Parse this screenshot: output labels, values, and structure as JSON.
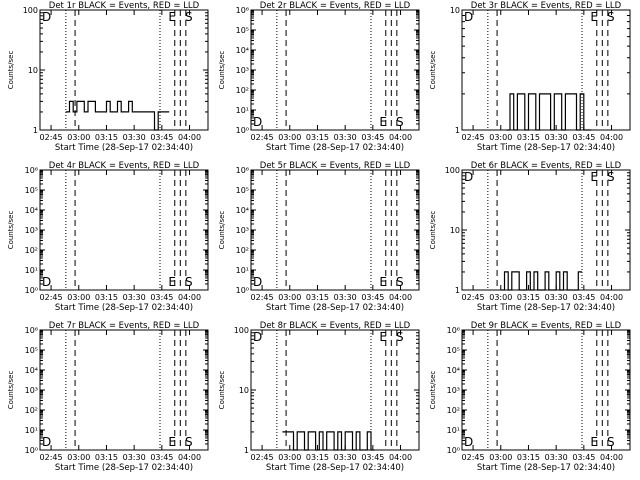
{
  "x_axis_label": "Start Time (28-Sep-17 02:34:40)",
  "y_axis_label": "Counts/sec",
  "colors": {
    "events": "#000000",
    "lld": "#ff0000",
    "background": "#ffffff"
  },
  "chart_data": [
    {
      "type": "line",
      "title": "Det 1r BLACK = Events, RED = LLD",
      "xlabel": "Start Time (28-Sep-17 02:34:40)",
      "ylabel": "Counts/sec",
      "x_ticks": [
        "02:45",
        "03:00",
        "03:15",
        "03:30",
        "03:45",
        "04:00"
      ],
      "y_scale": "log",
      "ylim": [
        1,
        100
      ],
      "y_ticks": [
        "1",
        "10",
        "100"
      ],
      "markers": [
        "D",
        "E",
        "S"
      ],
      "series": [
        {
          "x": [
            "02:53",
            "02:55",
            "02:57",
            "02:59",
            "03:01",
            "03:03",
            "03:05",
            "03:07",
            "03:09",
            "03:11",
            "03:13",
            "03:15",
            "03:17",
            "03:19",
            "03:21",
            "03:23",
            "03:25",
            "03:27",
            "03:29",
            "03:31",
            "03:33",
            "03:35",
            "03:37",
            "03:39",
            "03:41",
            "03:43",
            "03:45",
            "03:47"
          ],
          "values": [
            2,
            3,
            2,
            3,
            3,
            2,
            3,
            3,
            2,
            2,
            2,
            3,
            2,
            2,
            3,
            2,
            2,
            3,
            2,
            2,
            2,
            2,
            2,
            2,
            1,
            2,
            2,
            2
          ]
        }
      ]
    },
    {
      "type": "line",
      "title": "Det 2r BLACK = Events, RED = LLD",
      "xlabel": "Start Time (28-Sep-17 02:34:40)",
      "ylabel": "Counts/sec",
      "x_ticks": [
        "02:45",
        "03:00",
        "03:15",
        "03:30",
        "03:45",
        "04:00"
      ],
      "y_scale": "log",
      "ylim": [
        1,
        1000000
      ],
      "y_ticks": [
        "10⁰",
        "10¹",
        "10²",
        "10³",
        "10⁴",
        "10⁵",
        "10⁶"
      ],
      "markers": [
        "D",
        "E",
        "S"
      ],
      "series": []
    },
    {
      "type": "line",
      "title": "Det 3r BLACK = Events, RED = LLD",
      "xlabel": "Start Time (28-Sep-17 02:34:40)",
      "ylabel": "Counts/sec",
      "x_ticks": [
        "02:45",
        "03:00",
        "03:15",
        "03:30",
        "03:45",
        "04:00"
      ],
      "y_scale": "log",
      "ylim": [
        1,
        10
      ],
      "y_ticks": [
        "1",
        "10"
      ],
      "markers": [
        "D",
        "E",
        "S"
      ],
      "series": [
        {
          "x": [
            "03:03",
            "03:05",
            "03:07",
            "03:09",
            "03:11",
            "03:13",
            "03:15",
            "03:17",
            "03:19",
            "03:21",
            "03:23",
            "03:25",
            "03:27",
            "03:29",
            "03:31",
            "03:33",
            "03:35",
            "03:37",
            "03:39",
            "03:41",
            "03:43",
            "03:45",
            "03:47"
          ],
          "values": [
            1,
            2,
            1,
            2,
            2,
            1,
            2,
            2,
            1,
            2,
            2,
            2,
            1,
            2,
            2,
            1,
            2,
            2,
            2,
            1,
            2,
            1,
            1
          ]
        }
      ]
    },
    {
      "type": "line",
      "title": "Det 4r BLACK = Events, RED = LLD",
      "xlabel": "Start Time (28-Sep-17 02:34:40)",
      "ylabel": "Counts/sec",
      "x_ticks": [
        "02:45",
        "03:00",
        "03:15",
        "03:30",
        "03:45",
        "04:00"
      ],
      "y_scale": "log",
      "ylim": [
        1,
        1000000
      ],
      "y_ticks": [
        "10⁰",
        "10¹",
        "10²",
        "10³",
        "10⁴",
        "10⁵",
        "10⁶"
      ],
      "markers": [
        "D",
        "E",
        "S"
      ],
      "series": []
    },
    {
      "type": "line",
      "title": "Det 5r BLACK = Events, RED = LLD",
      "xlabel": "Start Time (28-Sep-17 02:34:40)",
      "ylabel": "Counts/sec",
      "x_ticks": [
        "02:45",
        "03:00",
        "03:15",
        "03:30",
        "03:45",
        "04:00"
      ],
      "y_scale": "log",
      "ylim": [
        1,
        1000000
      ],
      "y_ticks": [
        "10⁰",
        "10¹",
        "10²",
        "10³",
        "10⁴",
        "10⁵",
        "10⁶"
      ],
      "markers": [
        "D",
        "E",
        "S"
      ],
      "series": []
    },
    {
      "type": "line",
      "title": "Det 6r BLACK = Events, RED = LLD",
      "xlabel": "Start Time (28-Sep-17 02:34:40)",
      "ylabel": "Counts/sec",
      "x_ticks": [
        "02:45",
        "03:00",
        "03:15",
        "03:30",
        "03:45",
        "04:00"
      ],
      "y_scale": "log",
      "ylim": [
        1,
        100
      ],
      "y_ticks": [
        "1",
        "10",
        "100"
      ],
      "markers": [
        "D",
        "E",
        "S"
      ],
      "series": [
        {
          "x": [
            "03:00",
            "03:02",
            "03:04",
            "03:06",
            "03:08",
            "03:10",
            "03:12",
            "03:14",
            "03:16",
            "03:18",
            "03:20",
            "03:22",
            "03:24",
            "03:26",
            "03:28",
            "03:30",
            "03:32",
            "03:34",
            "03:36",
            "03:38",
            "03:40",
            "03:42"
          ],
          "values": [
            1,
            2,
            1,
            2,
            2,
            1,
            1,
            2,
            1,
            2,
            1,
            1,
            2,
            1,
            1,
            2,
            1,
            2,
            1,
            1,
            1,
            2
          ]
        }
      ]
    },
    {
      "type": "line",
      "title": "Det 7r BLACK = Events, RED = LLD",
      "xlabel": "Start Time (28-Sep-17 02:34:40)",
      "ylabel": "Counts/sec",
      "x_ticks": [
        "02:45",
        "03:00",
        "03:15",
        "03:30",
        "03:45",
        "04:00"
      ],
      "y_scale": "log",
      "ylim": [
        1,
        1000000
      ],
      "y_ticks": [
        "10⁰",
        "10¹",
        "10²",
        "10³",
        "10⁴",
        "10⁵",
        "10⁶"
      ],
      "markers": [
        "D",
        "E",
        "S"
      ],
      "series": []
    },
    {
      "type": "line",
      "title": "Det 8r BLACK = Events, RED = LLD",
      "xlabel": "Start Time (28-Sep-17 02:34:40)",
      "ylabel": "Counts/sec",
      "x_ticks": [
        "02:45",
        "03:00",
        "03:15",
        "03:30",
        "03:45",
        "04:00"
      ],
      "y_scale": "log",
      "ylim": [
        1,
        100
      ],
      "y_ticks": [
        "1",
        "10",
        "100"
      ],
      "markers": [
        "D",
        "E",
        "S"
      ],
      "series": [
        {
          "x": [
            "02:56",
            "02:58",
            "03:00",
            "03:02",
            "03:04",
            "03:06",
            "03:08",
            "03:10",
            "03:12",
            "03:14",
            "03:16",
            "03:18",
            "03:20",
            "03:22",
            "03:24",
            "03:26",
            "03:28",
            "03:30",
            "03:32",
            "03:34",
            "03:36",
            "03:38",
            "03:40",
            "03:42",
            "03:44"
          ],
          "values": [
            2,
            2,
            2,
            1,
            2,
            2,
            1,
            2,
            2,
            1,
            2,
            1,
            2,
            2,
            1,
            2,
            1,
            2,
            2,
            1,
            2,
            1,
            1,
            2,
            1
          ]
        }
      ]
    },
    {
      "type": "line",
      "title": "Det 9r BLACK = Events, RED = LLD",
      "xlabel": "Start Time (28-Sep-17 02:34:40)",
      "ylabel": "Counts/sec",
      "x_ticks": [
        "02:45",
        "03:00",
        "03:15",
        "03:30",
        "03:45",
        "04:00"
      ],
      "y_scale": "log",
      "ylim": [
        1,
        1000000
      ],
      "y_ticks": [
        "10⁰",
        "10¹",
        "10²",
        "10³",
        "10⁴",
        "10⁵",
        "10⁶"
      ],
      "markers": [
        "D",
        "E",
        "S"
      ],
      "series": []
    }
  ]
}
